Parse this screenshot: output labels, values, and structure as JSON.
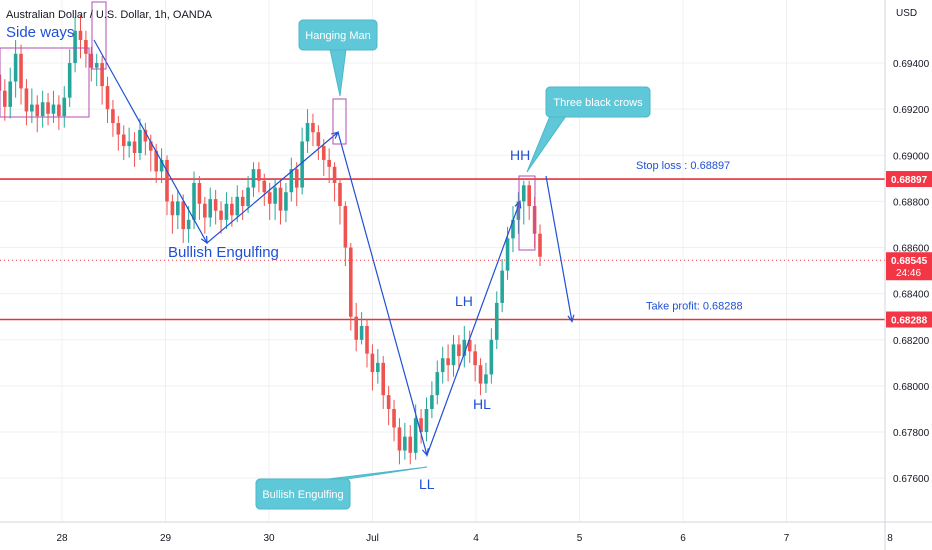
{
  "header": {
    "title": "Australian Dollar / U.S. Dollar, 1h, OANDA"
  },
  "axis": {
    "currency": "USD"
  },
  "colors": {
    "up": "#26a69a",
    "down": "#ef5350",
    "level_line": "#e8323c",
    "annotation": "#1f50d6",
    "callout_fill": "#5ec8d8",
    "box": "#b04fb0",
    "grid": "#eef0f3",
    "price_tag": "#f23645"
  },
  "chart_data": {
    "type": "candlestick",
    "symbol": "AUDUSD",
    "interval": "1h",
    "x_ticks": [
      "28",
      "29",
      "30",
      "Jul",
      "4",
      "5",
      "6",
      "7",
      "8"
    ],
    "y_ticks": [
      "0.69400",
      "0.69200",
      "0.69000",
      "0.68800",
      "0.68600",
      "0.68400",
      "0.68200",
      "0.68000",
      "0.67800",
      "0.67600"
    ],
    "ylim": [
      0.6741,
      0.6963
    ],
    "grid": true,
    "levels": [
      {
        "label": "Stop loss : 0.68897",
        "value": 0.68897,
        "tag": "0.68897"
      },
      {
        "label": "Take profit: 0.68288",
        "value": 0.68288,
        "tag": "0.68288"
      }
    ],
    "current_price": {
      "value": 0.68545,
      "tag": "0.68545",
      "countdown": "24:46"
    },
    "annotations": {
      "side_ways": "Side ways",
      "bullish_engulfing_1": "Bullish Engulfing",
      "hanging_man": "Hanging Man",
      "three_black_crows": "Three black crows",
      "hh": "HH",
      "lh": "LH",
      "hl": "HL",
      "ll": "LL",
      "bullish_engulfing_2": "Bullish Engulfing"
    },
    "swing_points": [
      {
        "t": 0.0,
        "price": 0.695
      },
      {
        "t": 1.45,
        "price": 0.6862
      },
      {
        "t": 2.68,
        "price": 0.691
      },
      {
        "t": 3.55,
        "price": 0.677
      },
      {
        "t": 4.45,
        "price": 0.688
      }
    ],
    "candles": [
      [
        0.6918,
        0.6935,
        0.6939,
        0.6912
      ],
      [
        0.6935,
        0.6928,
        0.694,
        0.6921
      ],
      [
        0.6928,
        0.6921,
        0.6933,
        0.6915
      ],
      [
        0.6921,
        0.6932,
        0.6938,
        0.6916
      ],
      [
        0.6932,
        0.6944,
        0.695,
        0.6925
      ],
      [
        0.6944,
        0.6929,
        0.6948,
        0.6922
      ],
      [
        0.6929,
        0.6919,
        0.6933,
        0.6913
      ],
      [
        0.6919,
        0.6922,
        0.6929,
        0.6914
      ],
      [
        0.6922,
        0.6917,
        0.6926,
        0.691
      ],
      [
        0.6917,
        0.6923,
        0.6928,
        0.6912
      ],
      [
        0.6923,
        0.6918,
        0.6927,
        0.6913
      ],
      [
        0.6918,
        0.6922,
        0.6928,
        0.6914
      ],
      [
        0.6922,
        0.6917,
        0.6926,
        0.6911
      ],
      [
        0.6917,
        0.6925,
        0.693,
        0.6912
      ],
      [
        0.6925,
        0.694,
        0.6946,
        0.6921
      ],
      [
        0.694,
        0.6954,
        0.696,
        0.6936
      ],
      [
        0.6954,
        0.695,
        0.6961,
        0.6942
      ],
      [
        0.695,
        0.6944,
        0.6954,
        0.6938
      ],
      [
        0.6944,
        0.6938,
        0.6947,
        0.6932
      ],
      [
        0.6938,
        0.694,
        0.6944,
        0.693
      ],
      [
        0.694,
        0.693,
        0.6943,
        0.6922
      ],
      [
        0.693,
        0.692,
        0.6934,
        0.6914
      ],
      [
        0.692,
        0.6914,
        0.6924,
        0.6908
      ],
      [
        0.6914,
        0.6909,
        0.6917,
        0.6902
      ],
      [
        0.6909,
        0.6904,
        0.6913,
        0.6898
      ],
      [
        0.6904,
        0.6906,
        0.6912,
        0.6899
      ],
      [
        0.6906,
        0.6901,
        0.691,
        0.6895
      ],
      [
        0.6901,
        0.6911,
        0.6916,
        0.6898
      ],
      [
        0.6911,
        0.6906,
        0.6914,
        0.69
      ],
      [
        0.6906,
        0.6902,
        0.6909,
        0.6893
      ],
      [
        0.6902,
        0.6893,
        0.6905,
        0.6888
      ],
      [
        0.6893,
        0.6898,
        0.6903,
        0.6888
      ],
      [
        0.6898,
        0.688,
        0.69,
        0.6874
      ],
      [
        0.688,
        0.6874,
        0.6883,
        0.6866
      ],
      [
        0.6874,
        0.688,
        0.6885,
        0.6868
      ],
      [
        0.688,
        0.6868,
        0.6883,
        0.6862
      ],
      [
        0.6868,
        0.6872,
        0.6878,
        0.6862
      ],
      [
        0.6872,
        0.6888,
        0.6893,
        0.6868
      ],
      [
        0.6888,
        0.6879,
        0.6891,
        0.6872
      ],
      [
        0.6879,
        0.6873,
        0.6882,
        0.6866
      ],
      [
        0.6873,
        0.6881,
        0.6886,
        0.6869
      ],
      [
        0.6881,
        0.6876,
        0.6885,
        0.687
      ],
      [
        0.6876,
        0.6872,
        0.688,
        0.6866
      ],
      [
        0.6872,
        0.6879,
        0.6884,
        0.6868
      ],
      [
        0.6879,
        0.6874,
        0.6882,
        0.6869
      ],
      [
        0.6874,
        0.6882,
        0.6887,
        0.6871
      ],
      [
        0.6882,
        0.6878,
        0.6885,
        0.6872
      ],
      [
        0.6878,
        0.6886,
        0.6891,
        0.6875
      ],
      [
        0.6886,
        0.6894,
        0.6897,
        0.6882
      ],
      [
        0.6894,
        0.6889,
        0.6897,
        0.6884
      ],
      [
        0.6889,
        0.6884,
        0.6892,
        0.6878
      ],
      [
        0.6884,
        0.6879,
        0.6888,
        0.6872
      ],
      [
        0.6879,
        0.6886,
        0.689,
        0.6872
      ],
      [
        0.6886,
        0.6876,
        0.6889,
        0.687
      ],
      [
        0.6876,
        0.6884,
        0.6888,
        0.6871
      ],
      [
        0.6884,
        0.6894,
        0.6899,
        0.688
      ],
      [
        0.6894,
        0.6886,
        0.6897,
        0.6878
      ],
      [
        0.6886,
        0.6906,
        0.6912,
        0.6883
      ],
      [
        0.6906,
        0.6914,
        0.692,
        0.6901
      ],
      [
        0.6914,
        0.691,
        0.6918,
        0.6904
      ],
      [
        0.691,
        0.6904,
        0.6913,
        0.6898
      ],
      [
        0.6904,
        0.6898,
        0.6907,
        0.6891
      ],
      [
        0.6898,
        0.6895,
        0.6903,
        0.6888
      ],
      [
        0.6895,
        0.6888,
        0.6897,
        0.688
      ],
      [
        0.6888,
        0.6878,
        0.689,
        0.687
      ],
      [
        0.6878,
        0.686,
        0.688,
        0.6852
      ],
      [
        0.686,
        0.683,
        0.6862,
        0.6824
      ],
      [
        0.683,
        0.682,
        0.6836,
        0.6815
      ],
      [
        0.682,
        0.6826,
        0.6832,
        0.6818
      ],
      [
        0.6826,
        0.6814,
        0.6829,
        0.6808
      ],
      [
        0.6814,
        0.6806,
        0.6818,
        0.6798
      ],
      [
        0.6806,
        0.681,
        0.6816,
        0.6801
      ],
      [
        0.681,
        0.6796,
        0.6813,
        0.679
      ],
      [
        0.6796,
        0.679,
        0.68,
        0.6783
      ],
      [
        0.679,
        0.6782,
        0.6794,
        0.6776
      ],
      [
        0.6782,
        0.6772,
        0.6786,
        0.6766
      ],
      [
        0.6772,
        0.6778,
        0.6784,
        0.6768
      ],
      [
        0.6778,
        0.6771,
        0.6783,
        0.6766
      ],
      [
        0.6771,
        0.6786,
        0.6792,
        0.6768
      ],
      [
        0.6786,
        0.678,
        0.679,
        0.6775
      ],
      [
        0.678,
        0.679,
        0.6795,
        0.6776
      ],
      [
        0.679,
        0.6796,
        0.6802,
        0.6786
      ],
      [
        0.6796,
        0.6806,
        0.6811,
        0.6792
      ],
      [
        0.6806,
        0.6812,
        0.6817,
        0.6801
      ],
      [
        0.6812,
        0.6809,
        0.6818,
        0.6802
      ],
      [
        0.6809,
        0.6818,
        0.6822,
        0.6804
      ],
      [
        0.6818,
        0.6813,
        0.6822,
        0.6807
      ],
      [
        0.6813,
        0.682,
        0.6826,
        0.6808
      ],
      [
        0.682,
        0.6815,
        0.6824,
        0.681
      ],
      [
        0.6815,
        0.6809,
        0.6818,
        0.6802
      ],
      [
        0.6809,
        0.6801,
        0.6812,
        0.6796
      ],
      [
        0.6801,
        0.6805,
        0.681,
        0.6797
      ],
      [
        0.6805,
        0.682,
        0.6825,
        0.6801
      ],
      [
        0.682,
        0.6836,
        0.6841,
        0.6816
      ],
      [
        0.6836,
        0.685,
        0.6855,
        0.6832
      ],
      [
        0.685,
        0.6864,
        0.6869,
        0.6846
      ],
      [
        0.6864,
        0.6872,
        0.6878,
        0.6858
      ],
      [
        0.6872,
        0.688,
        0.6884,
        0.6866
      ],
      [
        0.688,
        0.6887,
        0.6889,
        0.687
      ],
      [
        0.6887,
        0.6878,
        0.6889,
        0.6872
      ],
      [
        0.6878,
        0.6866,
        0.6882,
        0.686
      ],
      [
        0.6866,
        0.6856,
        0.687,
        0.6852
      ]
    ]
  }
}
